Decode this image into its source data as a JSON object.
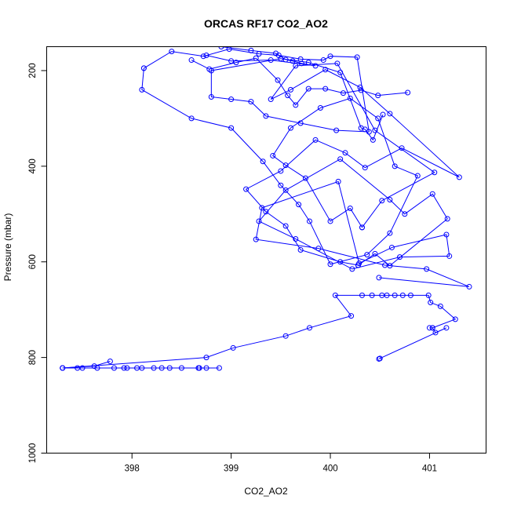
{
  "chart_data": {
    "type": "line",
    "title": "ORCAS RF17 CO2_AO2",
    "xlabel": "CO2_AO2",
    "ylabel": "Pressure (mbar)",
    "xlim": [
      397.14,
      401.57
    ],
    "ylim": [
      1000,
      150
    ],
    "y_reversed": true,
    "grid": false,
    "x_ticks": [
      398,
      399,
      400,
      401
    ],
    "y_ticks": [
      200,
      400,
      600,
      800,
      1000
    ],
    "x_tick_labels": [
      "398",
      "399",
      "400",
      "401"
    ],
    "y_tick_labels": [
      "200",
      "400",
      "600",
      "800",
      "1000"
    ],
    "series_color": "#0000ff",
    "series": [
      {
        "x": [
          397.3,
          397.45,
          397.5,
          397.65,
          397.82,
          397.92,
          398.05,
          398.1,
          398.22,
          398.3,
          398.38,
          398.5,
          398.67,
          398.75,
          398.88,
          398.68,
          397.95,
          397.3,
          398.75,
          399.02,
          399.55,
          399.79,
          400.21,
          400.05,
          400.32,
          400.42,
          400.52,
          400.57,
          400.65,
          400.73,
          400.81,
          400.99,
          401.01,
          401.11,
          401.26,
          401.03,
          401.0
        ],
        "y": [
          822,
          822,
          822,
          822,
          822,
          822,
          822,
          822,
          822,
          822,
          822,
          822,
          822,
          822,
          822,
          822,
          822,
          822,
          800,
          780,
          755,
          738,
          713,
          670,
          670,
          670,
          670,
          670,
          670,
          670,
          670,
          670,
          685,
          693,
          720,
          738,
          738
        ]
      },
      {
        "x": [
          401.03,
          401.06,
          401.17,
          400.5,
          400.49
        ],
        "y": [
          738,
          748,
          738,
          802,
          803
        ]
      },
      {
        "x": [
          397.78,
          397.62,
          397.3
        ],
        "y": [
          808,
          818,
          822
        ]
      },
      {
        "x": [
          400.49,
          401.4,
          400.97,
          400.55,
          399.88,
          399.25,
          399.31,
          400.08,
          400.29,
          400.62,
          401.17,
          401.2,
          400.7,
          400.22,
          399.65,
          399.28,
          399.55,
          400.1,
          400.6,
          400.75,
          401.03,
          401.18,
          400.6,
          400.45,
          400.28
        ],
        "y": [
          633,
          652,
          615,
          607,
          572,
          553,
          487,
          432,
          603,
          570,
          543,
          588,
          590,
          615,
          552,
          515,
          450,
          385,
          470,
          500,
          458,
          510,
          608,
          583,
          607
        ]
      },
      {
        "x": [
          400.28,
          400.1,
          399.7,
          399.55,
          399.35,
          399.15,
          399.5,
          399.85,
          400.15,
          400.35,
          400.72,
          401.3,
          400.6,
          400.3,
          399.95,
          399.6,
          399.4,
          399.65,
          400.07,
          400.45,
          401.05,
          400.52,
          400.32
        ],
        "y": [
          607,
          600,
          575,
          525,
          495,
          448,
          410,
          345,
          372,
          403,
          362,
          423,
          290,
          235,
          198,
          240,
          260,
          190,
          185,
          325,
          413,
          472,
          528
        ]
      },
      {
        "x": [
          400.32,
          400.2,
          400.0,
          399.75,
          399.55,
          399.42,
          399.6,
          399.9,
          400.2,
          400.48,
          400.65,
          400.88,
          400.6,
          400.37,
          400.0,
          399.79,
          399.68,
          399.5,
          399.32,
          399.0,
          398.6,
          398.1,
          398.12
        ],
        "y": [
          528,
          488,
          515,
          425,
          398,
          378,
          320,
          278,
          258,
          300,
          400,
          420,
          540,
          585,
          605,
          515,
          480,
          440,
          390,
          320,
          300,
          240,
          195
        ]
      },
      {
        "x": [
          398.12,
          398.4,
          398.72,
          398.98,
          399.28,
          399.48,
          399.7,
          399.93,
          400.0,
          400.27,
          400.39,
          400.06,
          399.7,
          399.35,
          399.2,
          399.0,
          398.8,
          398.8,
          399.5,
          399.78,
          400.1,
          400.31,
          400.35,
          400.43,
          400.53
        ],
        "y": [
          195,
          160,
          170,
          155,
          165,
          168,
          176,
          178,
          170,
          172,
          328,
          325,
          310,
          295,
          265,
          260,
          255,
          200,
          175,
          183,
          204,
          320,
          323,
          345,
          292
        ]
      },
      {
        "x": [
          398.6,
          398.78,
          399.05,
          399.25,
          399.47,
          399.57,
          399.65,
          399.78,
          399.95,
          400.13,
          400.31,
          400.48,
          400.78
        ],
        "y": [
          178,
          197,
          183,
          174,
          220,
          252,
          272,
          238,
          238,
          247,
          241,
          252,
          246
        ]
      },
      {
        "x": [
          398.9,
          399.2,
          399.45,
          399.55,
          399.62,
          399.71,
          399.85,
          399.4,
          399.0,
          398.75
        ],
        "y": [
          150,
          158,
          164,
          177,
          180,
          185,
          190,
          178,
          180,
          168
        ]
      }
    ]
  }
}
